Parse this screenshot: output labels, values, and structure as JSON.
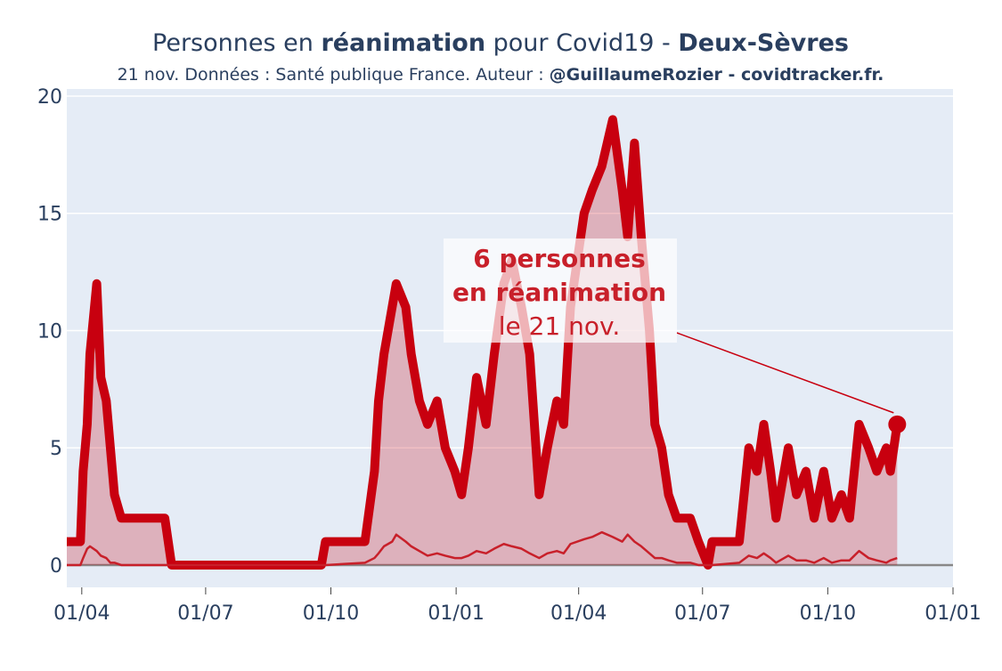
{
  "chart_data": {
    "type": "line",
    "title": [
      "Personnes en ",
      "réanimation",
      " pour Covid19 - ",
      "Deux-Sèvres"
    ],
    "subtitle": [
      "21 nov. Données : Santé publique France. Auteur : ",
      "@GuillaumeRozier - covidtracker.fr."
    ],
    "annotation": [
      "6 personnes",
      "en réanimation",
      "le 21 nov."
    ],
    "x": [
      -11,
      -1,
      1,
      4,
      6,
      11,
      14,
      18,
      21,
      24,
      29,
      61,
      66,
      100,
      150,
      176,
      179,
      208,
      215,
      218,
      222,
      228,
      231,
      238,
      242,
      248,
      254,
      261,
      267,
      274,
      279,
      284,
      290,
      297,
      303,
      310,
      316,
      323,
      329,
      336,
      342,
      349,
      354,
      359,
      369,
      375,
      382,
      390,
      397,
      401,
      406,
      411,
      417,
      421,
      426,
      431,
      437,
      447,
      453,
      460,
      463,
      483,
      490,
      496,
      501,
      506,
      510,
      519,
      525,
      532,
      538,
      545,
      551,
      558,
      564,
      571,
      578,
      584,
      591,
      594,
      599
    ],
    "series": [
      {
        "color": "#c8000f",
        "fill": "rgba(200,0,15,0.25)",
        "width": 10,
        "values": [
          1,
          1,
          4,
          6,
          9,
          12,
          8,
          7,
          5,
          3,
          2,
          2,
          0,
          0,
          0,
          0,
          1,
          1,
          4,
          7,
          9,
          11,
          12,
          11,
          9,
          7,
          6,
          7,
          5,
          4,
          3,
          5,
          8,
          6,
          9,
          12,
          13,
          11,
          9,
          3,
          5,
          7,
          6,
          11,
          15,
          16,
          17,
          19,
          16,
          14,
          18,
          14,
          10,
          6,
          5,
          3,
          2,
          2,
          1,
          0,
          1,
          1,
          5,
          4,
          6,
          4,
          2,
          5,
          3,
          4,
          2,
          4,
          2,
          3,
          2,
          6,
          5,
          4,
          5,
          4,
          6
        ]
      },
      {
        "color": "#c8202a",
        "width": 2.5,
        "values": [
          0,
          0,
          0.3,
          0.7,
          0.8,
          0.6,
          0.4,
          0.3,
          0.1,
          0.1,
          0,
          0,
          0,
          0,
          0,
          0,
          0,
          0.1,
          0.3,
          0.5,
          0.8,
          1,
          1.3,
          1,
          0.8,
          0.6,
          0.4,
          0.5,
          0.4,
          0.3,
          0.3,
          0.4,
          0.6,
          0.5,
          0.7,
          0.9,
          0.8,
          0.7,
          0.5,
          0.3,
          0.5,
          0.6,
          0.5,
          0.9,
          1.1,
          1.2,
          1.4,
          1.2,
          1,
          1.3,
          1,
          0.8,
          0.5,
          0.3,
          0.3,
          0.2,
          0.1,
          0.1,
          0,
          0,
          0,
          0.1,
          0.4,
          0.3,
          0.5,
          0.3,
          0.1,
          0.4,
          0.2,
          0.2,
          0.1,
          0.3,
          0.1,
          0.2,
          0.2,
          0.6,
          0.3,
          0.2,
          0.1,
          0.2,
          0.3
        ]
      }
    ],
    "xlim": [
      -11,
      640
    ],
    "xticks": [
      {
        "value": 0,
        "label": "01/04"
      },
      {
        "value": 91,
        "label": "01/07"
      },
      {
        "value": 183,
        "label": "01/10"
      },
      {
        "value": 275,
        "label": "01/01"
      },
      {
        "value": 365,
        "label": "01/04"
      },
      {
        "value": 456,
        "label": "01/07"
      },
      {
        "value": 548,
        "label": "01/10"
      },
      {
        "value": 640,
        "label": "01/01"
      }
    ],
    "ylim": [
      -0.95,
      20
    ],
    "yticks": [
      0,
      5,
      10,
      15,
      20
    ],
    "grid": true
  }
}
